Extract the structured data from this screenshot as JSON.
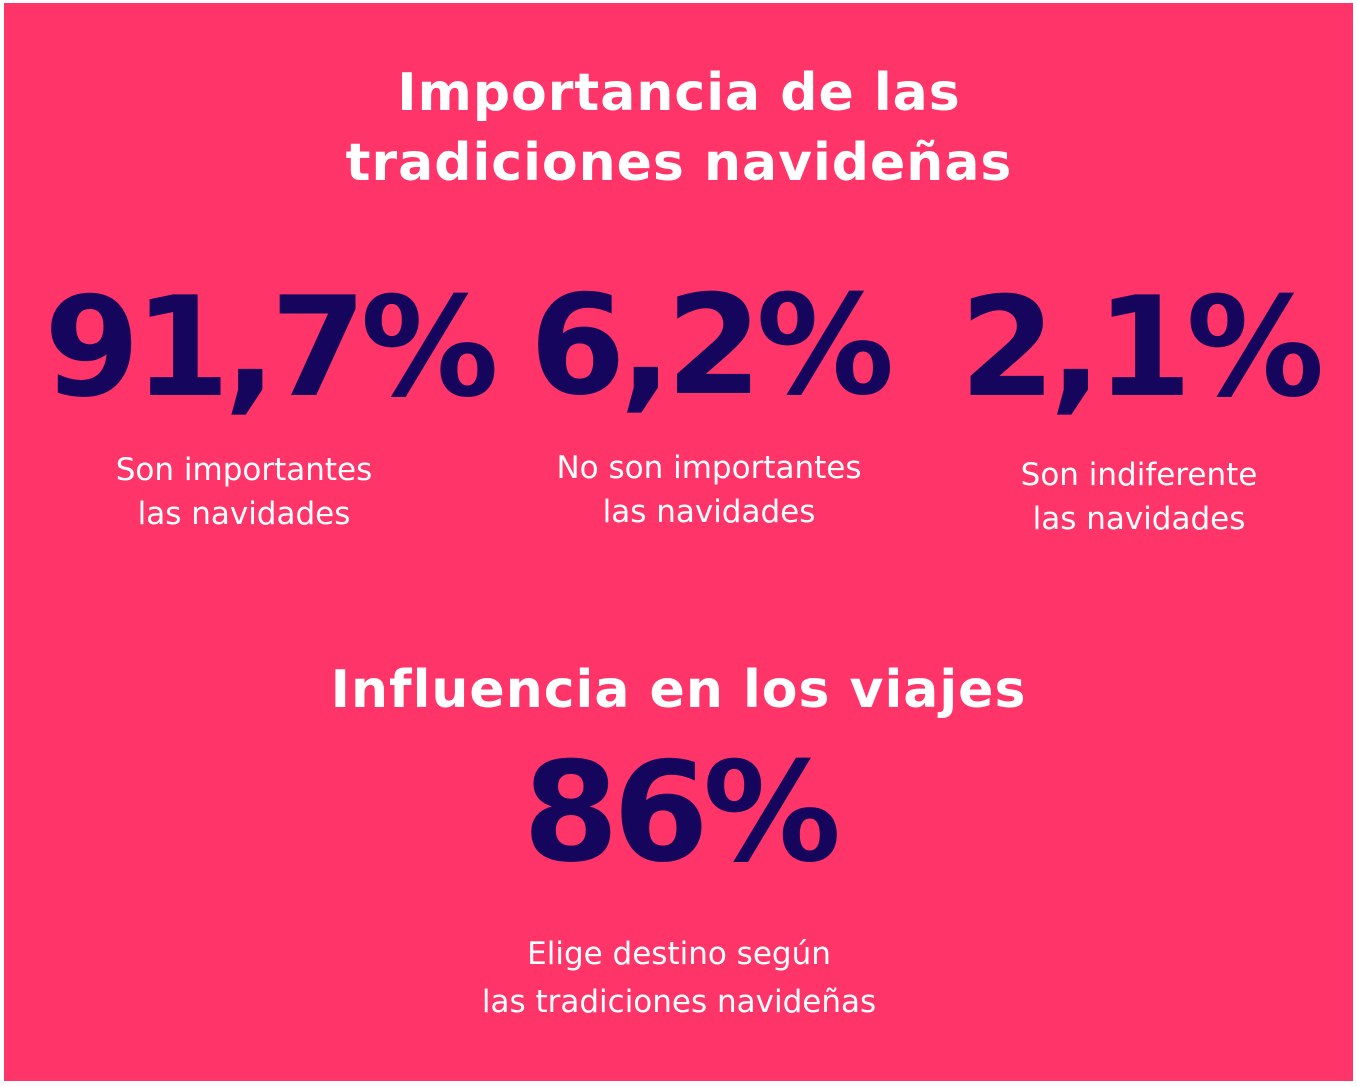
{
  "colors": {
    "background": "#FF3468",
    "number": "#15055C",
    "text": "#FFFFFF"
  },
  "section1": {
    "title": "Importancia de las tradiciones navideñas",
    "stats": [
      {
        "value": "91,7%",
        "label_line1": "Son importantes",
        "label_line2": "las navidades"
      },
      {
        "value": "6,2%",
        "label_line1": "No son importantes",
        "label_line2": "las navidades"
      },
      {
        "value": "2,1%",
        "label_line1": "Son indiferente",
        "label_line2": "las navidades"
      }
    ]
  },
  "section2": {
    "title": "Influencia en los viajes",
    "stat": {
      "value": "86%",
      "label_line1": "Elige destino según",
      "label_line2": "las tradiciones navideñas"
    }
  }
}
